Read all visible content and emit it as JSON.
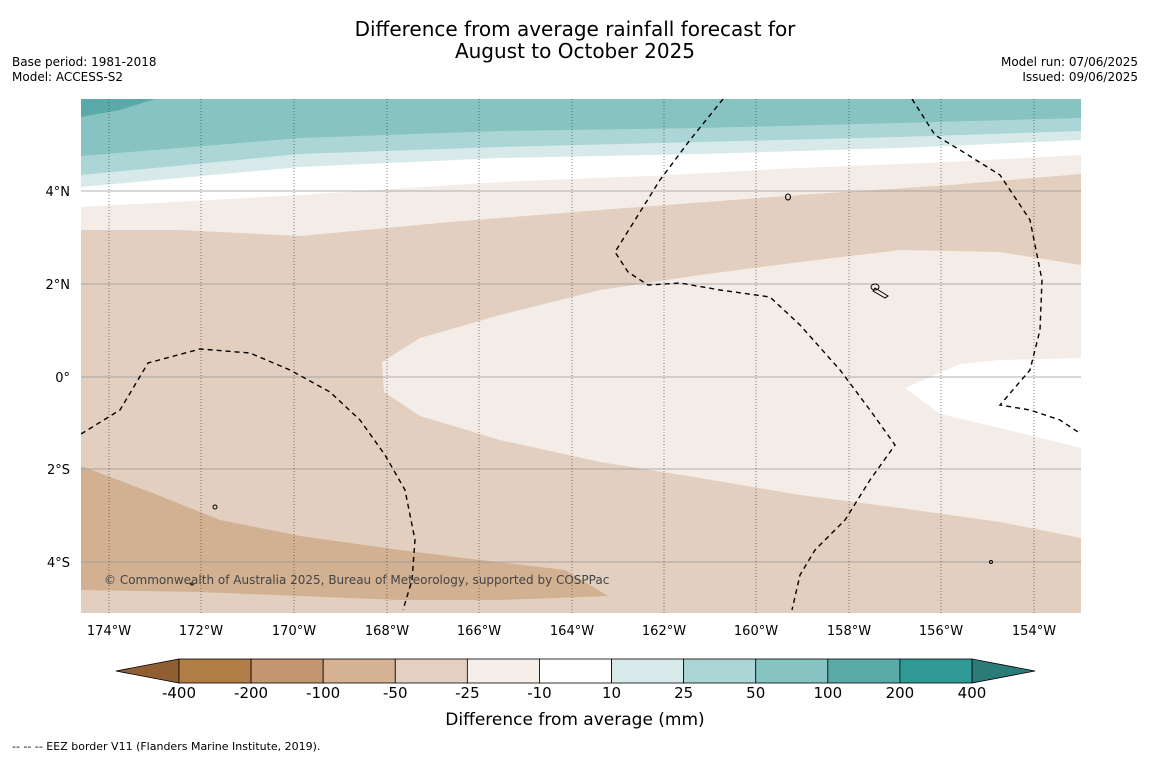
{
  "title_line1": "Difference from average rainfall forecast for",
  "title_line2": "August to October 2025",
  "meta_left": {
    "base_period": "Base period: 1981-2018",
    "model": "Model: ACCESS-S2"
  },
  "meta_right": {
    "model_run": "Model run: 07/06/2025",
    "issued": "Issued: 09/06/2025"
  },
  "map": {
    "copyright": "© Commonwealth of Australia 2025, Bureau of Meteorology, supported by COSPPac",
    "lat_labels": [
      "4°N",
      "2°N",
      "0°",
      "2°S",
      "4°S"
    ],
    "lon_labels": [
      "174°W",
      "172°W",
      "170°W",
      "168°W",
      "166°W",
      "164°W",
      "162°W",
      "160°W",
      "158°W",
      "156°W",
      "154°W"
    ],
    "colors": {
      "teal_dark": "#5aaaa9",
      "teal_mid": "#86c3c1",
      "teal_light": "#acd6d5",
      "teal_pale": "#d7eae9",
      "neutral": "#ffffff",
      "brown_pale": "#f4ece7",
      "brown_light": "#e2cfbf",
      "brown_mid": "#d2b092"
    }
  },
  "colorbar": {
    "title": "Difference from average (mm)",
    "ticks": [
      "-400",
      "-200",
      "-100",
      "-50",
      "-25",
      "-10",
      "10",
      "25",
      "50",
      "100",
      "200",
      "400"
    ],
    "colors": [
      "#b07d47",
      "#c4966f",
      "#d4b293",
      "#e3d0c0",
      "#f5eee9",
      "#ffffff",
      "#d7eae9",
      "#acd6d5",
      "#86c3c1",
      "#59aaa9",
      "#2f9996"
    ],
    "extend_low_color": "#8f5f33",
    "extend_high_color": "#2b7b79"
  },
  "footnote": "--  --  -- EEZ border V11 (Flanders Marine Institute, 2019)."
}
